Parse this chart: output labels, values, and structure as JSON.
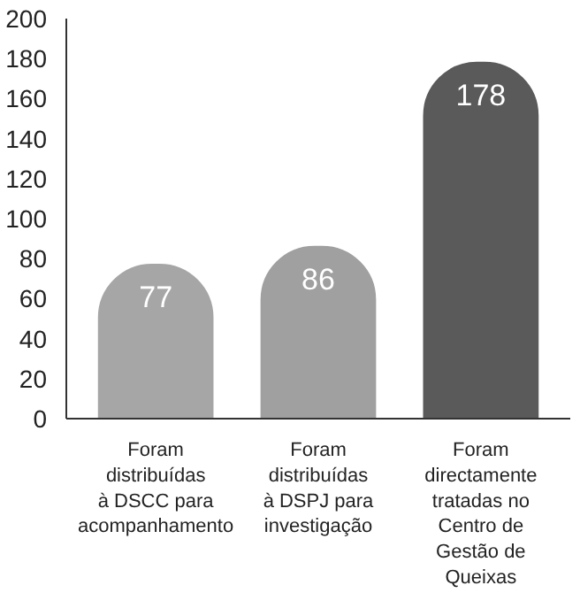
{
  "chart_data": {
    "type": "bar",
    "categories": [
      "Foram distribuídas à DSCC para acompanhamento",
      "Foram distribuídas à DSPJ para investigação",
      "Foram directamente tratadas no Centro de Gestão de Queixas"
    ],
    "values": [
      77,
      86,
      178
    ],
    "colors": [
      "#a6a6a6",
      "#a0a0a0",
      "#5a5a5a"
    ],
    "ylim": [
      0,
      200
    ],
    "yticks": [
      0,
      20,
      40,
      60,
      80,
      100,
      120,
      140,
      160,
      180,
      200
    ],
    "data_labels": true,
    "grid": false
  }
}
